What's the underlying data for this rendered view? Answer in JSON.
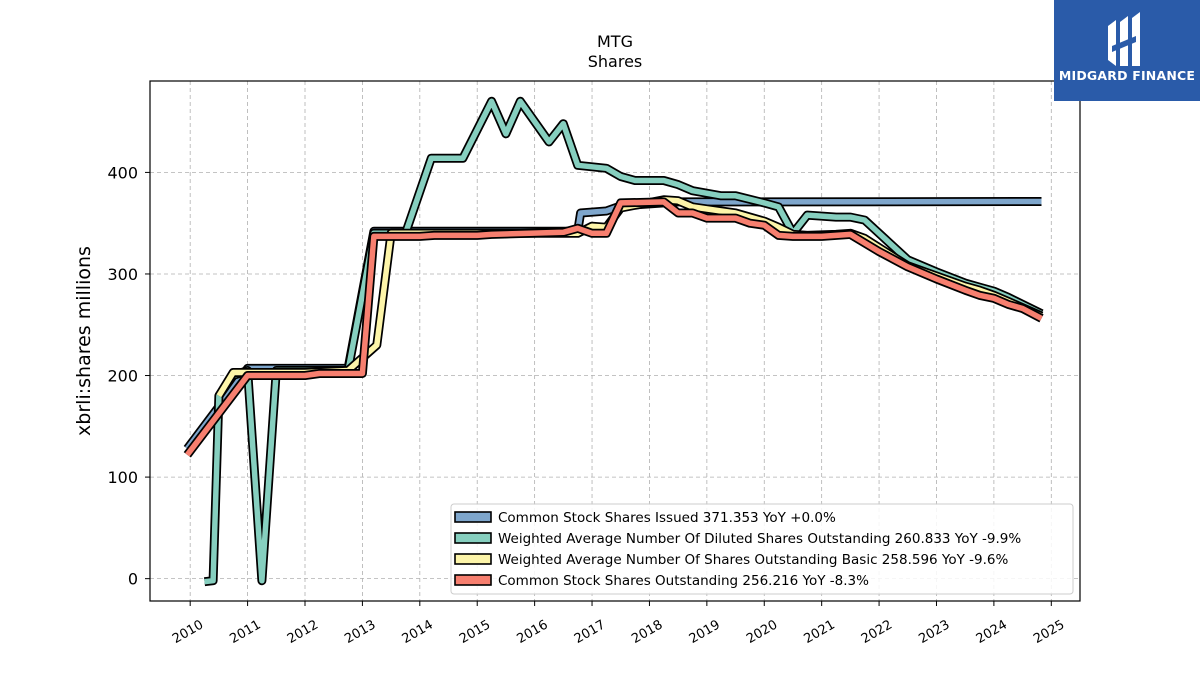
{
  "brand": {
    "name": "MIDGARD FINANCE",
    "logo_icon": "midgard-finance-logo-icon",
    "bg_color": "#2a5ba9"
  },
  "chart_data": {
    "type": "line",
    "title": "MTG",
    "subtitle": "Shares",
    "xlabel": "",
    "ylabel": "xbrli:shares millions",
    "xlim": [
      2009.3,
      2025.5
    ],
    "ylim": [
      -22,
      490
    ],
    "y_ticks": [
      0,
      100,
      200,
      300,
      400
    ],
    "x_ticks": [
      2010,
      2011,
      2012,
      2013,
      2014,
      2015,
      2016,
      2017,
      2018,
      2019,
      2020,
      2021,
      2022,
      2023,
      2024,
      2025
    ],
    "grid": true,
    "legend_position": "lower-right",
    "series": [
      {
        "name": "Common Stock Shares Issued",
        "legend": "Common Stock Shares Issued  371.353 YoY +0.0%",
        "color": "#7ea6cc",
        "points": [
          [
            2009.95,
            128
          ],
          [
            2011.0,
            207
          ],
          [
            2012.0,
            207
          ],
          [
            2012.75,
            207
          ],
          [
            2013.2,
            342
          ],
          [
            2016.75,
            342
          ],
          [
            2016.8,
            360
          ],
          [
            2017.25,
            362
          ],
          [
            2017.5,
            367
          ],
          [
            2018.5,
            371
          ],
          [
            2019.25,
            371
          ],
          [
            2024.83,
            371.353
          ]
        ]
      },
      {
        "name": "Weighted Average Number Of Diluted Shares Outstanding",
        "legend": "Weighted Average Number Of Diluted Shares Outstanding  260.833 YoY -9.9%",
        "color": "#86cfbf",
        "points": [
          [
            2010.25,
            -3
          ],
          [
            2010.4,
            -2
          ],
          [
            2010.5,
            180
          ],
          [
            2010.75,
            200
          ],
          [
            2011.0,
            205
          ],
          [
            2011.25,
            -2
          ],
          [
            2011.5,
            205
          ],
          [
            2012.0,
            205
          ],
          [
            2012.75,
            205
          ],
          [
            2013.2,
            340
          ],
          [
            2013.75,
            340
          ],
          [
            2014.2,
            414
          ],
          [
            2014.75,
            414
          ],
          [
            2015.25,
            470
          ],
          [
            2015.5,
            438
          ],
          [
            2015.75,
            470
          ],
          [
            2016.25,
            430
          ],
          [
            2016.5,
            448
          ],
          [
            2016.75,
            407
          ],
          [
            2017.25,
            404
          ],
          [
            2017.5,
            396
          ],
          [
            2017.75,
            392
          ],
          [
            2018.25,
            392
          ],
          [
            2018.5,
            388
          ],
          [
            2018.75,
            382
          ],
          [
            2019.25,
            377
          ],
          [
            2019.5,
            377
          ],
          [
            2020.0,
            370
          ],
          [
            2020.25,
            366
          ],
          [
            2020.5,
            340
          ],
          [
            2020.75,
            358
          ],
          [
            2021.25,
            356
          ],
          [
            2021.5,
            356
          ],
          [
            2021.75,
            353
          ],
          [
            2022.25,
            327
          ],
          [
            2022.5,
            314
          ],
          [
            2023.0,
            302
          ],
          [
            2023.5,
            291
          ],
          [
            2023.75,
            287
          ],
          [
            2024.0,
            283
          ],
          [
            2024.25,
            277
          ],
          [
            2024.83,
            260.833
          ]
        ]
      },
      {
        "name": "Weighted Average Number Of Shares Outstanding Basic",
        "legend": "Weighted Average Number Of Shares Outstanding Basic  258.596 YoY -9.6%",
        "color": "#fdf5a9",
        "points": [
          [
            2010.5,
            180
          ],
          [
            2010.75,
            203
          ],
          [
            2011.0,
            203
          ],
          [
            2012.0,
            203
          ],
          [
            2012.75,
            205
          ],
          [
            2013.25,
            230
          ],
          [
            2013.5,
            340
          ],
          [
            2013.75,
            340
          ],
          [
            2016.75,
            340
          ],
          [
            2017.0,
            347
          ],
          [
            2017.25,
            346
          ],
          [
            2017.5,
            365
          ],
          [
            2018.25,
            373
          ],
          [
            2018.5,
            372
          ],
          [
            2018.75,
            366
          ],
          [
            2019.25,
            362
          ],
          [
            2019.5,
            360
          ],
          [
            2020.0,
            352
          ],
          [
            2020.25,
            346
          ],
          [
            2020.5,
            339
          ],
          [
            2020.75,
            338
          ],
          [
            2021.25,
            339
          ],
          [
            2021.5,
            340
          ],
          [
            2021.75,
            335
          ],
          [
            2022.25,
            317
          ],
          [
            2022.5,
            308
          ],
          [
            2023.0,
            298
          ],
          [
            2023.5,
            288
          ],
          [
            2023.75,
            284
          ],
          [
            2024.0,
            279
          ],
          [
            2024.25,
            273
          ],
          [
            2024.83,
            258.596
          ]
        ]
      },
      {
        "name": "Common Stock Shares Outstanding",
        "legend": "Common Stock Shares Outstanding  256.216 YoY -8.3%",
        "color": "#f77f6f",
        "points": [
          [
            2009.95,
            122
          ],
          [
            2011.0,
            200
          ],
          [
            2012.0,
            200
          ],
          [
            2012.25,
            202
          ],
          [
            2013.0,
            202
          ],
          [
            2013.2,
            337
          ],
          [
            2014.0,
            337
          ],
          [
            2014.25,
            338
          ],
          [
            2015.0,
            338
          ],
          [
            2015.25,
            339
          ],
          [
            2016.5,
            341
          ],
          [
            2016.75,
            345
          ],
          [
            2017.0,
            340
          ],
          [
            2017.25,
            340
          ],
          [
            2017.5,
            370
          ],
          [
            2018.25,
            371
          ],
          [
            2018.5,
            360
          ],
          [
            2018.75,
            360
          ],
          [
            2019.0,
            355
          ],
          [
            2019.5,
            355
          ],
          [
            2019.75,
            350
          ],
          [
            2020.0,
            348
          ],
          [
            2020.25,
            338
          ],
          [
            2020.5,
            337
          ],
          [
            2021.0,
            337
          ],
          [
            2021.5,
            339
          ],
          [
            2022.0,
            322
          ],
          [
            2022.5,
            307
          ],
          [
            2023.0,
            295
          ],
          [
            2023.5,
            284
          ],
          [
            2023.75,
            279
          ],
          [
            2024.0,
            276
          ],
          [
            2024.25,
            270
          ],
          [
            2024.5,
            266
          ],
          [
            2024.83,
            256.216
          ]
        ]
      }
    ]
  }
}
